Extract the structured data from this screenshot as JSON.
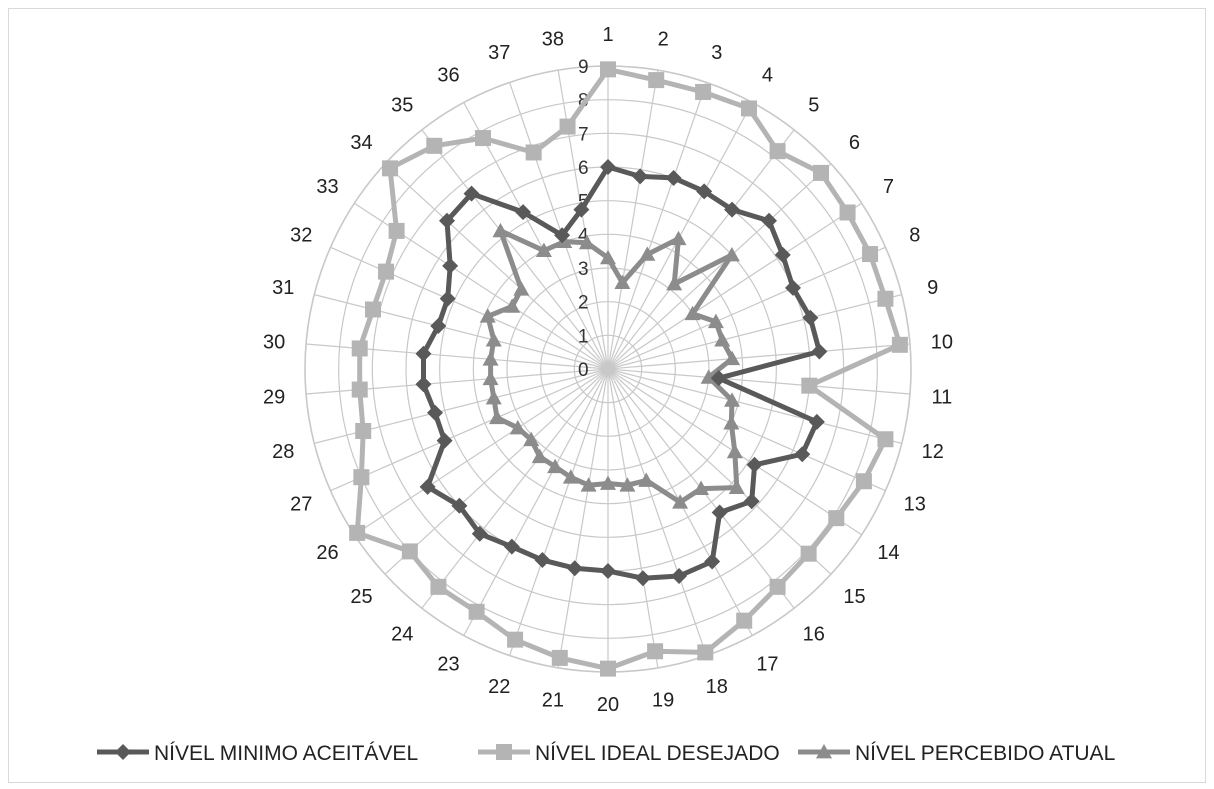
{
  "chart_data": {
    "type": "radar",
    "title": "",
    "categories": [
      "1",
      "2",
      "3",
      "4",
      "5",
      "6",
      "7",
      "8",
      "9",
      "10",
      "11",
      "12",
      "13",
      "14",
      "15",
      "16",
      "17",
      "18",
      "19",
      "20",
      "21",
      "22",
      "23",
      "24",
      "25",
      "26",
      "27",
      "28",
      "29",
      "30",
      "31",
      "32",
      "33",
      "34",
      "35",
      "36",
      "37",
      "38"
    ],
    "r_range": [
      0,
      9
    ],
    "r_ticks": [
      "0",
      "1",
      "2",
      "3",
      "4",
      "5",
      "6",
      "7",
      "8",
      "9"
    ],
    "legend_position": "bottom",
    "series": [
      {
        "name": "NÍVEL MINIMO ACEITÁVEL",
        "color": "#595959",
        "marker": "diamond",
        "values": [
          6.0,
          5.8,
          6.0,
          6.0,
          6.0,
          6.5,
          6.2,
          6.0,
          6.2,
          6.3,
          3.3,
          6.4,
          6.3,
          5.2,
          5.8,
          5.4,
          6.5,
          6.5,
          6.3,
          6.0,
          6.0,
          6.0,
          6.0,
          6.2,
          6.0,
          6.4,
          5.3,
          5.3,
          5.5,
          5.5,
          5.2,
          5.2,
          5.6,
          6.5,
          6.6,
          5.3,
          4.2,
          4.8
        ]
      },
      {
        "name": "NÍVEL IDEAL DESEJADO",
        "color": "#b4b4b4",
        "marker": "square",
        "values": [
          8.9,
          8.7,
          8.7,
          8.8,
          8.2,
          8.6,
          8.5,
          8.5,
          8.5,
          8.7,
          6.0,
          8.5,
          8.3,
          8.1,
          8.1,
          8.2,
          8.5,
          8.9,
          8.5,
          8.9,
          8.7,
          8.5,
          8.2,
          8.2,
          8.0,
          8.9,
          8.0,
          7.5,
          7.4,
          7.4,
          7.2,
          7.2,
          7.5,
          8.8,
          8.4,
          7.8,
          6.8,
          7.3
        ]
      },
      {
        "name": "NÍVEL PERCEBIDO ATUAL",
        "color": "#8c8c8c",
        "marker": "triangle",
        "values": [
          3.3,
          2.6,
          3.6,
          4.4,
          3.2,
          5.0,
          3.0,
          3.5,
          3.5,
          3.7,
          3.0,
          3.8,
          4.0,
          4.5,
          5.2,
          4.5,
          4.5,
          3.5,
          3.5,
          3.4,
          3.5,
          3.4,
          3.3,
          3.3,
          3.1,
          3.2,
          3.6,
          3.5,
          3.5,
          3.5,
          3.5,
          3.9,
          3.4,
          3.5,
          5.2,
          4.0,
          4.0,
          3.8
        ]
      }
    ]
  }
}
